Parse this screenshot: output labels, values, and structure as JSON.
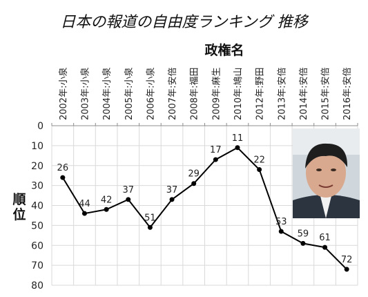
{
  "chart_data": {
    "type": "line",
    "title": "日本の報道の自由度ランキング 推移",
    "xlabel": "政権名",
    "ylabel": "順位",
    "categories": [
      "2002年:小泉",
      "2003年:小泉",
      "2004年:小泉",
      "2005年:小泉",
      "2006年:小泉",
      "2007年:安倍",
      "2008年:福田",
      "2009年:麻生",
      "2010年:鳩山",
      "2012年:野田",
      "2013年:安倍",
      "2014年:安倍",
      "2015年:安倍",
      "2016年:安倍"
    ],
    "values": [
      26,
      44,
      42,
      37,
      51,
      37,
      29,
      17,
      11,
      22,
      53,
      59,
      61,
      72
    ],
    "ylim": [
      0,
      80
    ],
    "yticks": [
      0,
      10,
      20,
      30,
      40,
      50,
      60,
      70,
      80
    ],
    "y_inverted": true,
    "x_axis_position": "top",
    "grid": true,
    "line_color": "#000000",
    "grid_color": "#d9d9d9",
    "inset_image": "portrait-photo"
  }
}
